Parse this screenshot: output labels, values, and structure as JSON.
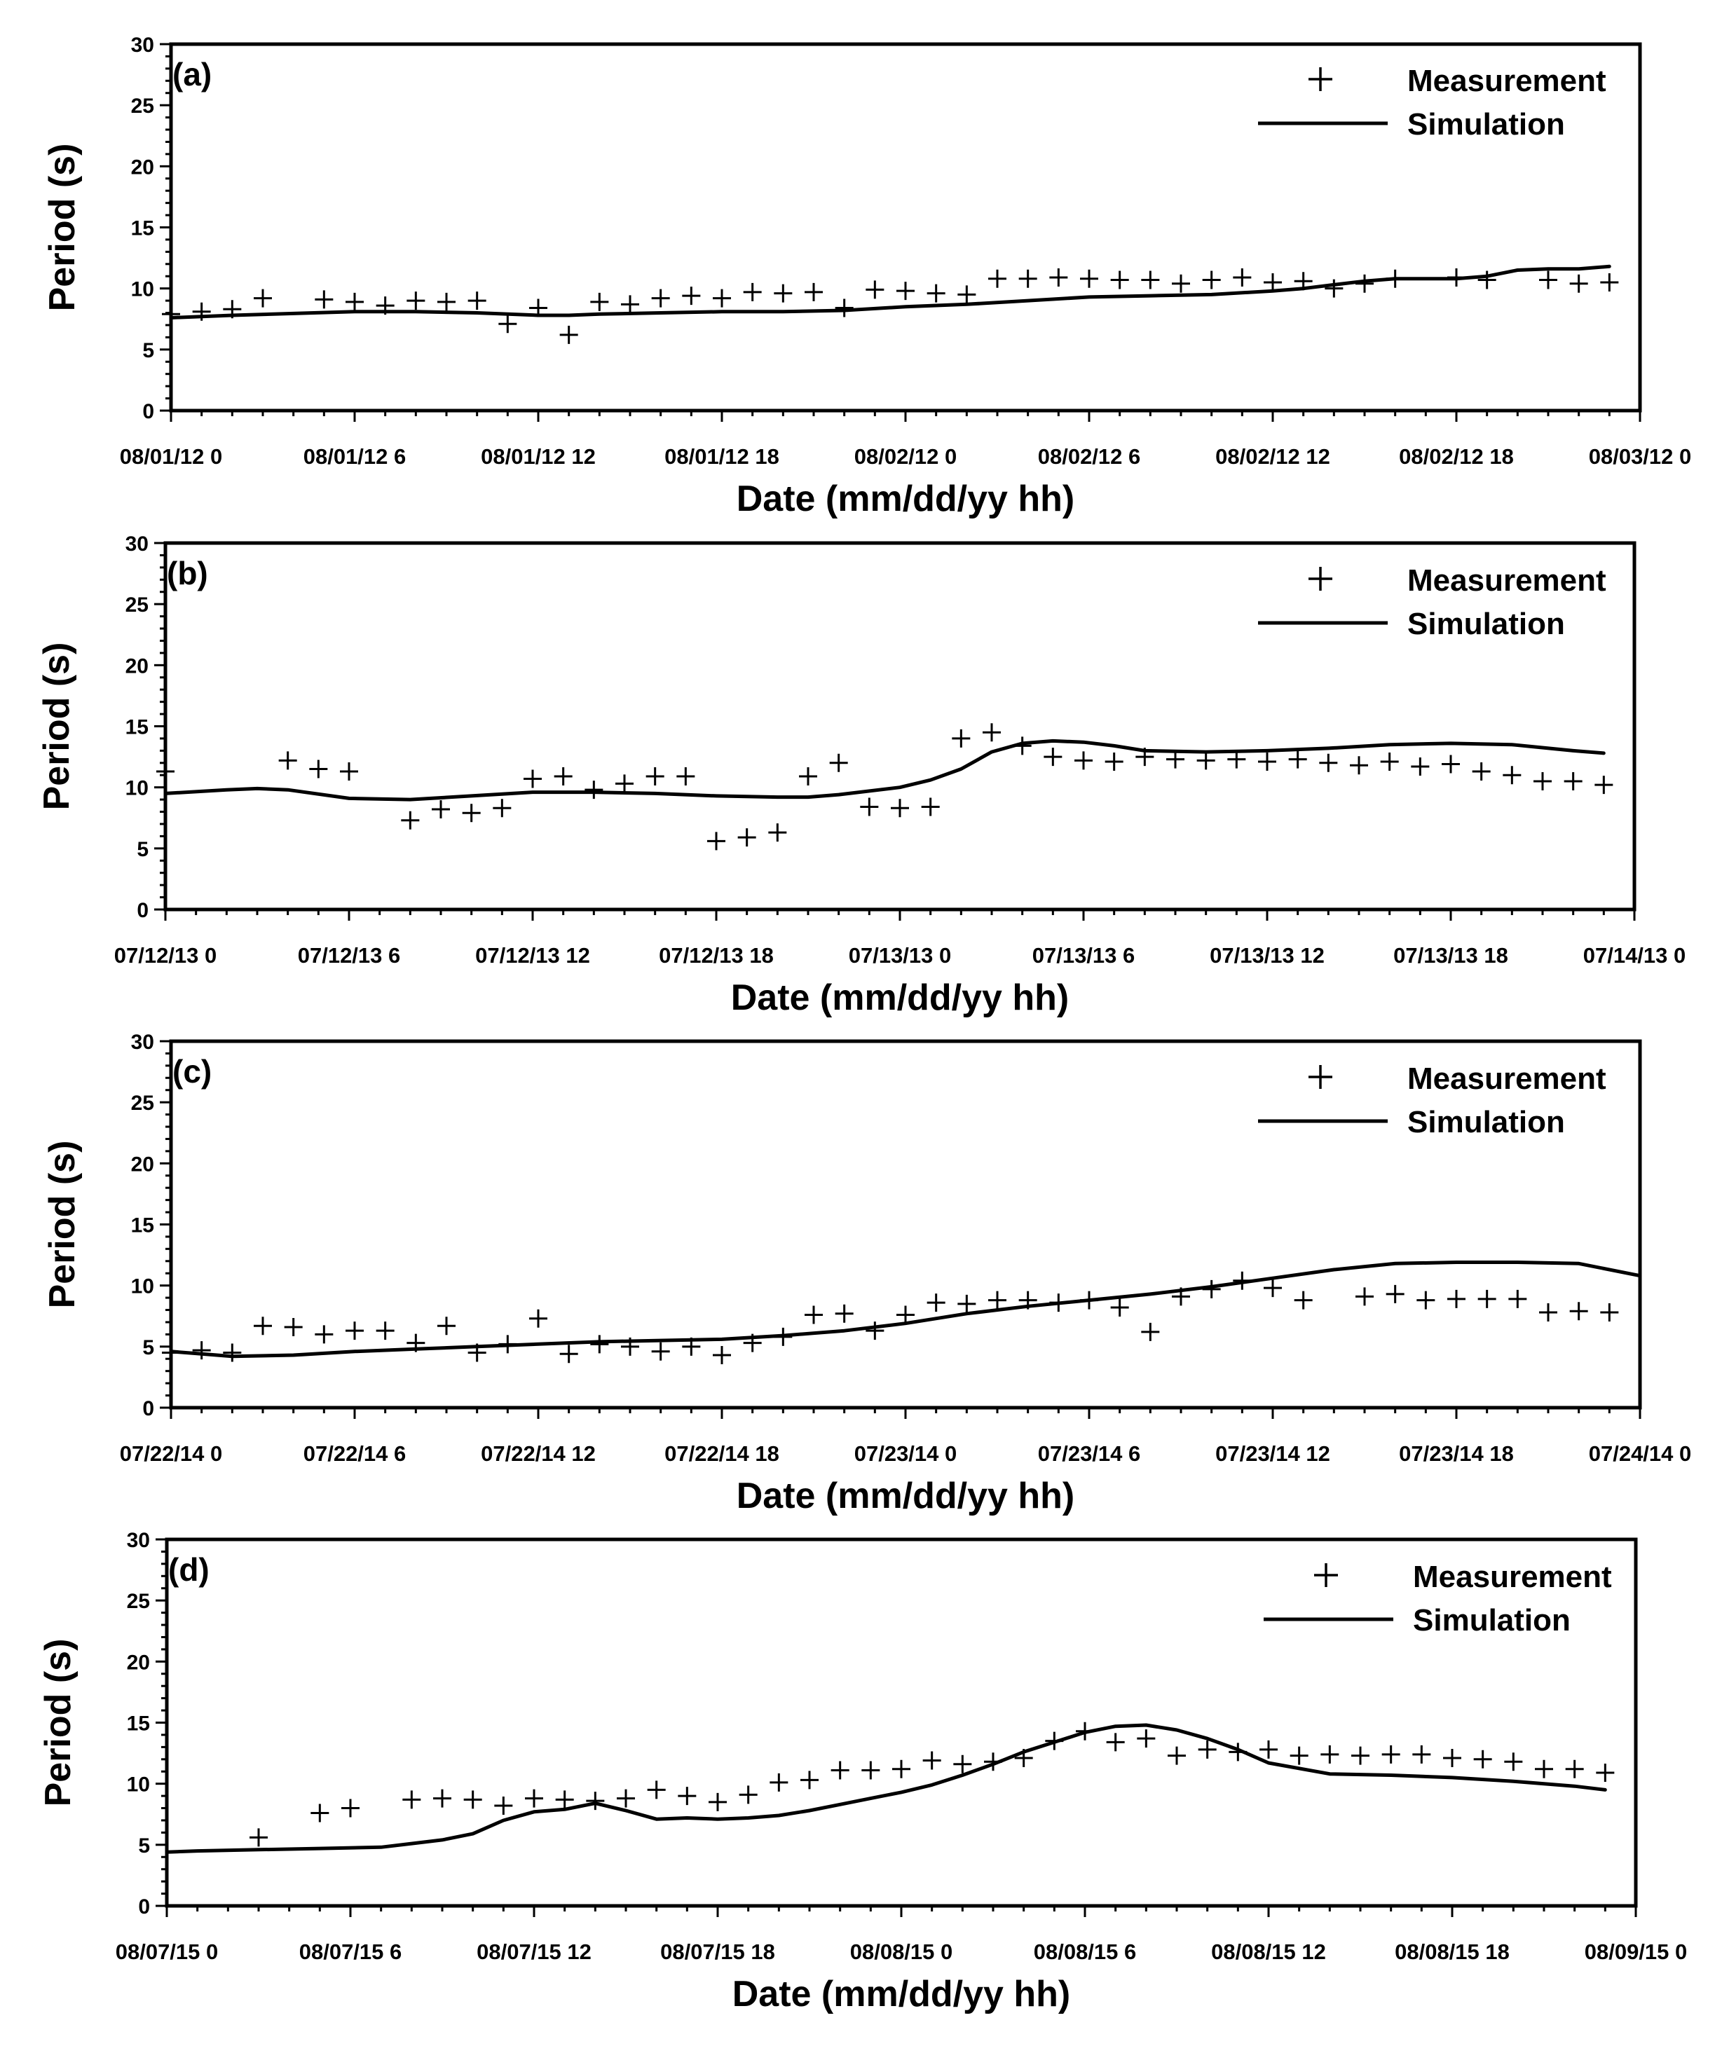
{
  "chart_data": [
    {
      "type": "line",
      "panel_label": "(a)",
      "ylabel": "Period (s)",
      "xlabel": "Date (mm/dd/yy hh)",
      "xlim": [
        0,
        48
      ],
      "ylim": [
        0,
        30
      ],
      "yticks": [
        "0",
        "5",
        "10",
        "15",
        "20",
        "25",
        "30"
      ],
      "xtick_labels": [
        "08/01/12 0",
        "08/01/12 6",
        "08/01/12 12",
        "08/01/12 18",
        "08/02/12 0",
        "08/02/12 6",
        "08/02/12 12",
        "08/02/12 18",
        "08/03/12 0"
      ],
      "legend": {
        "measurement": "Measurement",
        "simulation": "Simulation"
      },
      "series": [
        {
          "name": "Measurement",
          "style": "marker-plus",
          "x": [
            0,
            1,
            2,
            3,
            5,
            6,
            7,
            8,
            9,
            10,
            11,
            12,
            13,
            14,
            15,
            16,
            17,
            18,
            19,
            20,
            21,
            22,
            23,
            24,
            25,
            26,
            27,
            28,
            29,
            30,
            31,
            32,
            33,
            34,
            35,
            36,
            37,
            38,
            39,
            40,
            42,
            43,
            45,
            46,
            47
          ],
          "y": [
            7.9,
            8.1,
            8.3,
            9.2,
            9.1,
            8.9,
            8.6,
            9.0,
            8.9,
            9.0,
            7.1,
            8.4,
            6.2,
            8.9,
            8.7,
            9.2,
            9.4,
            9.2,
            9.7,
            9.6,
            9.7,
            8.4,
            9.9,
            9.8,
            9.6,
            9.5,
            10.8,
            10.8,
            10.9,
            10.8,
            10.7,
            10.7,
            10.4,
            10.7,
            10.9,
            10.5,
            10.6,
            10.0,
            10.4,
            10.8,
            10.9,
            10.7,
            10.7,
            10.4,
            10.5
          ]
        },
        {
          "name": "Simulation",
          "style": "line",
          "x": [
            0,
            2,
            4,
            6,
            8,
            10,
            12,
            13,
            14,
            16,
            18,
            20,
            22,
            24,
            26,
            28,
            30,
            32,
            34,
            36,
            37,
            38,
            39,
            40,
            41,
            42,
            43,
            44,
            45,
            46,
            47
          ],
          "y": [
            7.6,
            7.8,
            7.95,
            8.1,
            8.1,
            8.0,
            7.8,
            7.8,
            7.9,
            8.0,
            8.1,
            8.1,
            8.2,
            8.5,
            8.7,
            9.0,
            9.3,
            9.4,
            9.5,
            9.8,
            10.0,
            10.3,
            10.6,
            10.8,
            10.8,
            10.8,
            11.0,
            11.5,
            11.6,
            11.6,
            11.8
          ]
        }
      ]
    },
    {
      "type": "line",
      "panel_label": "(b)",
      "ylabel": "Period (s)",
      "xlabel": "Date (mm/dd/yy hh)",
      "xlim": [
        0,
        48
      ],
      "ylim": [
        0,
        30
      ],
      "yticks": [
        "0",
        "5",
        "10",
        "15",
        "20",
        "25",
        "30"
      ],
      "xtick_labels": [
        "07/12/13 0",
        "07/12/13 6",
        "07/12/13 12",
        "07/12/13 18",
        "07/13/13 0",
        "07/13/13 6",
        "07/13/13 12",
        "07/13/13 18",
        "07/14/13 0"
      ],
      "legend": {
        "measurement": "Measurement",
        "simulation": "Simulation"
      },
      "series": [
        {
          "name": "Measurement",
          "style": "marker-plus",
          "x": [
            0,
            4,
            5,
            6,
            8,
            9,
            10,
            11,
            12,
            13,
            14,
            15,
            16,
            17,
            18,
            19,
            20,
            21,
            22,
            23,
            24,
            25,
            26,
            27,
            28,
            29,
            30,
            31,
            32,
            33,
            34,
            35,
            36,
            37,
            38,
            39,
            40,
            41,
            42,
            43,
            44,
            45,
            46,
            47
          ],
          "y": [
            11.3,
            12.2,
            11.5,
            11.3,
            7.3,
            8.2,
            7.9,
            8.3,
            10.7,
            10.9,
            9.8,
            10.3,
            10.9,
            10.9,
            5.6,
            5.9,
            6.3,
            10.9,
            12.0,
            8.4,
            8.3,
            8.4,
            14.0,
            14.5,
            13.4,
            12.5,
            12.2,
            12.1,
            12.5,
            12.3,
            12.2,
            12.3,
            12.1,
            12.3,
            12.0,
            11.8,
            12.1,
            11.7,
            11.9,
            11.3,
            11.0,
            10.5,
            10.5,
            10.2
          ]
        },
        {
          "name": "Simulation",
          "style": "line",
          "x": [
            0,
            2,
            3,
            4,
            6,
            8,
            10,
            12,
            14,
            16,
            18,
            20,
            21,
            22,
            24,
            25,
            26,
            27,
            28,
            29,
            30,
            31,
            32,
            34,
            36,
            38,
            40,
            42,
            44,
            46,
            47
          ],
          "y": [
            9.5,
            9.8,
            9.9,
            9.8,
            9.1,
            9.0,
            9.3,
            9.6,
            9.6,
            9.5,
            9.3,
            9.2,
            9.2,
            9.4,
            10.0,
            10.6,
            11.5,
            12.9,
            13.6,
            13.8,
            13.7,
            13.4,
            13.0,
            12.9,
            13.0,
            13.2,
            13.5,
            13.6,
            13.5,
            13.0,
            12.8
          ]
        }
      ]
    },
    {
      "type": "line",
      "panel_label": "(c)",
      "ylabel": "Period (s)",
      "xlabel": "Date (mm/dd/yy hh)",
      "xlim": [
        0,
        48
      ],
      "ylim": [
        0,
        30
      ],
      "yticks": [
        "0",
        "5",
        "10",
        "15",
        "20",
        "25",
        "30"
      ],
      "xtick_labels": [
        "07/22/14 0",
        "07/22/14 6",
        "07/22/14 12",
        "07/22/14 18",
        "07/23/14 0",
        "07/23/14 6",
        "07/23/14 12",
        "07/23/14 18",
        "07/24/14 0"
      ],
      "legend": {
        "measurement": "Measurement",
        "simulation": "Simulation"
      },
      "series": [
        {
          "name": "Measurement",
          "style": "marker-plus",
          "x": [
            0,
            1,
            2,
            3,
            4,
            5,
            6,
            7,
            8,
            9,
            10,
            11,
            12,
            13,
            14,
            15,
            16,
            17,
            18,
            19,
            20,
            21,
            22,
            23,
            24,
            25,
            26,
            27,
            28,
            29,
            30,
            31,
            32,
            33,
            34,
            35,
            36,
            37,
            39,
            40,
            41,
            42,
            43,
            44,
            45,
            46,
            47
          ],
          "y": [
            4.5,
            4.7,
            4.5,
            6.7,
            6.6,
            6.0,
            6.3,
            6.3,
            5.3,
            6.7,
            4.5,
            5.2,
            7.3,
            4.4,
            5.2,
            5.0,
            4.6,
            5.0,
            4.3,
            5.3,
            5.8,
            7.6,
            7.7,
            6.3,
            7.6,
            8.6,
            8.5,
            8.8,
            8.8,
            8.6,
            8.8,
            8.2,
            6.2,
            9.1,
            9.7,
            10.4,
            9.8,
            8.8,
            9.1,
            9.3,
            8.8,
            8.9,
            8.9,
            8.9,
            7.8,
            7.9,
            7.8
          ]
        },
        {
          "name": "Simulation",
          "style": "line",
          "x": [
            0,
            1,
            2,
            4,
            6,
            8,
            10,
            12,
            14,
            16,
            18,
            20,
            22,
            24,
            26,
            28,
            30,
            32,
            34,
            36,
            38,
            40,
            42,
            44,
            46,
            48
          ],
          "y": [
            4.6,
            4.4,
            4.2,
            4.3,
            4.6,
            4.8,
            5.0,
            5.2,
            5.4,
            5.5,
            5.6,
            5.9,
            6.3,
            6.9,
            7.7,
            8.3,
            8.8,
            9.3,
            9.9,
            10.6,
            11.3,
            11.8,
            11.9,
            11.9,
            11.8,
            10.8
          ]
        }
      ]
    },
    {
      "type": "line",
      "panel_label": "(d)",
      "ylabel": "Period (s)",
      "xlabel": "Date (mm/dd/yy hh)",
      "xlim": [
        0,
        48
      ],
      "ylim": [
        0,
        30
      ],
      "yticks": [
        "0",
        "5",
        "10",
        "15",
        "20",
        "25",
        "30"
      ],
      "xtick_labels": [
        "08/07/15 0",
        "08/07/15 6",
        "08/07/15 12",
        "08/07/15 18",
        "08/08/15 0",
        "08/08/15 6",
        "08/08/15 12",
        "08/08/15 18",
        "08/09/15 0"
      ],
      "legend": {
        "measurement": "Measurement",
        "simulation": "Simulation"
      },
      "series": [
        {
          "name": "Measurement",
          "style": "marker-plus",
          "x": [
            3,
            5,
            6,
            8,
            9,
            10,
            11,
            12,
            13,
            14,
            15,
            16,
            17,
            18,
            19,
            20,
            21,
            22,
            23,
            24,
            25,
            26,
            27,
            28,
            29,
            30,
            31,
            32,
            33,
            34,
            35,
            36,
            37,
            38,
            39,
            40,
            41,
            42,
            43,
            44,
            45,
            46,
            47
          ],
          "y": [
            5.6,
            7.6,
            8.0,
            8.7,
            8.8,
            8.7,
            8.2,
            8.8,
            8.7,
            8.6,
            8.8,
            9.5,
            9.0,
            8.5,
            9.1,
            10.1,
            10.3,
            11.1,
            11.1,
            11.2,
            11.9,
            11.6,
            11.8,
            12.1,
            13.5,
            14.3,
            13.4,
            13.7,
            12.3,
            12.8,
            12.6,
            12.8,
            12.3,
            12.4,
            12.3,
            12.4,
            12.4,
            12.1,
            12.0,
            11.8,
            11.2,
            11.2,
            10.9
          ]
        },
        {
          "name": "Simulation",
          "style": "line",
          "x": [
            0,
            1,
            3,
            5,
            7,
            8,
            9,
            10,
            11,
            12,
            13,
            14,
            15,
            16,
            17,
            18,
            19,
            20,
            21,
            22,
            23,
            24,
            25,
            26,
            27,
            28,
            29,
            30,
            31,
            32,
            33,
            34,
            35,
            36,
            38,
            40,
            42,
            44,
            46,
            47
          ],
          "y": [
            4.4,
            4.5,
            4.6,
            4.7,
            4.8,
            5.1,
            5.4,
            5.9,
            7.0,
            7.7,
            7.9,
            8.4,
            7.8,
            7.1,
            7.2,
            7.1,
            7.2,
            7.4,
            7.8,
            8.3,
            8.8,
            9.3,
            9.9,
            10.7,
            11.6,
            12.6,
            13.4,
            14.2,
            14.7,
            14.8,
            14.4,
            13.7,
            12.8,
            11.7,
            10.8,
            10.7,
            10.5,
            10.2,
            9.8,
            9.5
          ]
        }
      ]
    }
  ]
}
